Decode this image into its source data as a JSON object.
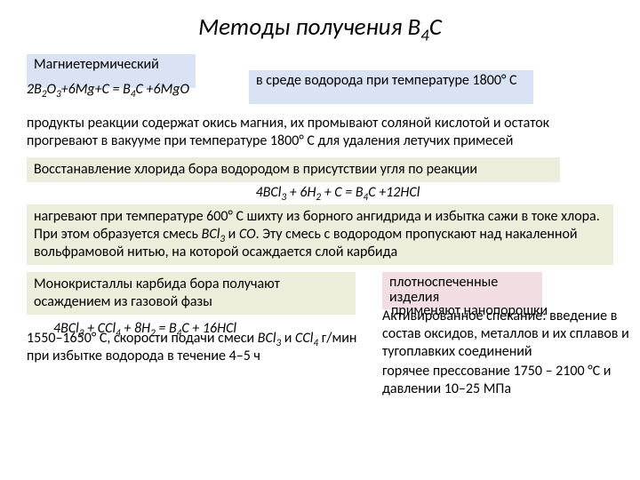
{
  "title_html": "Методы получения B<sub>4</sub>C",
  "method1": {
    "label": "Магниетермический",
    "equation_html": "2B<sub>2</sub>O<sub>3</sub>+6Mg+C = B<sub>4</sub>C +6MgO"
  },
  "method1_env": "в среде водорода при температуре 1800° С",
  "method1_details": "продукты реакции содержат окись магния, их промывают соляной кислотой и остаток прогревают в вакууме при температуре 1800° С для удаления летучих примесей",
  "method2": {
    "label": "Восстанавление хлорида бора водородом в присутствии угля по реакции",
    "equation_html": "4BCl<sub>3</sub> + 6H<sub>2</sub> + C = B<sub>4</sub>C +12HCl"
  },
  "method2_details_html": "нагревают при температуре 600° С шихту из борного ангидрида и избытка сажи в токе хлора. При этом образуется смесь <i>BCl<sub>3</sub></i> и <i>CO</i>. Эту смесь с водородом пропускают над накаленной вольфрамовой нитью, на которой осаждается слой карбида",
  "method3": {
    "label": "Монокристаллы карбида бора получают осаждением из газовой фазы",
    "equation_html": "4BCl<sub>3</sub> + CCl<sub>4</sub> + 8H<sub>2</sub> = B<sub>4</sub>C + 16HCl"
  },
  "method3_details_html": "1550–1650° С, скорости подачи смеси <i>BCl<sub>3</sub></i> и <i>CCl<sub>4</sub></i> г/мин при избытке водорода в течение 4–5 ч",
  "method4": {
    "label": "плотноспеченные изделия",
    "note1": "применяют нанопорошки",
    "note2": "Активированное спекание: введение в состав оксидов, металлов и их сплавов и тугоплавких соединений",
    "note3": "горячее прессование 1750 – 2100 °С и давлении 10–25 МПа"
  },
  "colors": {
    "blue": "#dae3f3",
    "olive": "#ededdb",
    "pink": "#f1dde2",
    "text": "#000000",
    "bg": "#ffffff"
  }
}
